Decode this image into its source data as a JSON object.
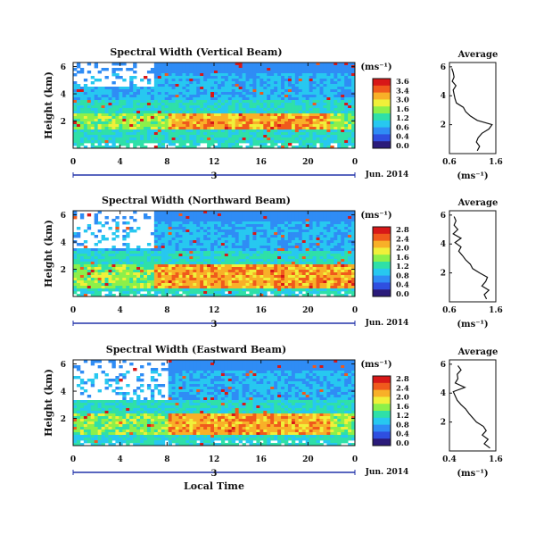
{
  "figure": {
    "xlabel": "Local Time",
    "cbar_unit": "(ms⁻¹)",
    "colormap": [
      "#2b1b7a",
      "#2f4fe0",
      "#2f8cf5",
      "#27c8f0",
      "#2fe0a8",
      "#8cf04a",
      "#f0f03a",
      "#f8b028",
      "#f05a1c",
      "#d81818"
    ]
  },
  "chart_data": [
    {
      "type": "heatmap",
      "title": "Spectral Width (Vertical Beam)",
      "ylabel": "Height (km)",
      "x_ticks": [
        "0",
        "4",
        "8",
        "12",
        "16",
        "20",
        "0"
      ],
      "y_ticks": [
        "6",
        "4",
        "2"
      ],
      "xlim": [
        0,
        24
      ],
      "ylim": [
        0,
        6.3
      ],
      "day_marker": "3",
      "date_label": "Jun. 2014",
      "colorbar": {
        "ticks": [
          "3.6",
          "3.4",
          "3.0",
          "1.6",
          "1.2",
          "0.6",
          "0.4",
          "0.0"
        ],
        "range": [
          0,
          3.6
        ]
      },
      "average": {
        "title": "Average",
        "xlabel": "(ms⁻¹)",
        "x_ticks": [
          "0.6",
          "1.6"
        ],
        "y_ticks": [
          "6",
          "4",
          "2"
        ],
        "xlim": [
          0.6,
          1.6
        ],
        "ylim": [
          0,
          6.3
        ],
        "height": [
          0.2,
          0.5,
          0.8,
          1.1,
          1.4,
          1.7,
          2.0,
          2.3,
          2.6,
          2.9,
          3.2,
          3.5,
          3.8,
          4.1,
          4.4,
          4.7,
          5.0,
          5.3,
          5.6,
          5.9
        ],
        "value": [
          1.2,
          1.25,
          1.18,
          1.22,
          1.3,
          1.45,
          1.52,
          1.2,
          1.05,
          0.95,
          0.9,
          0.75,
          0.72,
          0.7,
          0.68,
          0.74,
          0.66,
          0.7,
          0.68,
          0.65
        ]
      },
      "field": {
        "high_band": [
          1.3,
          2.6
        ],
        "high_time": [
          8,
          22
        ],
        "gap_rows": [
          4.5,
          6.3
        ],
        "gap_time": [
          0,
          7
        ]
      }
    },
    {
      "type": "heatmap",
      "title": "Spectral Width (Northward Beam)",
      "ylabel": "Height (km)",
      "x_ticks": [
        "0",
        "4",
        "8",
        "12",
        "16",
        "20",
        "0"
      ],
      "y_ticks": [
        "6",
        "4",
        "2"
      ],
      "xlim": [
        0,
        24
      ],
      "ylim": [
        0,
        6.3
      ],
      "day_marker": "3",
      "date_label": "Jun. 2014",
      "colorbar": {
        "ticks": [
          "2.8",
          "2.4",
          "2.0",
          "1.6",
          "1.2",
          "0.8",
          "0.4",
          "0.0"
        ],
        "range": [
          0,
          2.8
        ]
      },
      "average": {
        "title": "Average",
        "xlabel": "(ms⁻¹)",
        "x_ticks": [
          "0.6",
          "1.6"
        ],
        "y_ticks": [
          "6",
          "4",
          "2"
        ],
        "xlim": [
          0.6,
          1.6
        ],
        "ylim": [
          0,
          6.3
        ],
        "height": [
          0.2,
          0.5,
          0.8,
          1.1,
          1.4,
          1.7,
          2.0,
          2.3,
          2.6,
          2.9,
          3.2,
          3.5,
          3.8,
          4.1,
          4.4,
          4.7,
          5.0,
          5.3,
          5.6,
          5.9
        ],
        "value": [
          1.4,
          1.35,
          1.45,
          1.3,
          1.38,
          1.42,
          1.25,
          1.1,
          1.05,
          0.95,
          0.88,
          0.8,
          0.85,
          0.72,
          0.85,
          0.68,
          0.78,
          0.7,
          0.74,
          0.7
        ]
      },
      "field": {
        "high_band": [
          0.6,
          2.4
        ],
        "high_time": [
          7,
          24
        ],
        "gap_rows": [
          3.5,
          6.3
        ],
        "gap_time": [
          0,
          7
        ]
      }
    },
    {
      "type": "heatmap",
      "title": "Spectral Width (Eastward Beam)",
      "ylabel": "Height (km)",
      "x_ticks": [
        "0",
        "4",
        "8",
        "12",
        "16",
        "20",
        "0"
      ],
      "y_ticks": [
        "6",
        "4",
        "2"
      ],
      "xlim": [
        0,
        24
      ],
      "ylim": [
        0,
        6.3
      ],
      "day_marker": "3",
      "date_label": "Jun. 2014",
      "colorbar": {
        "ticks": [
          "2.8",
          "2.4",
          "2.0",
          "1.6",
          "1.2",
          "0.8",
          "0.4",
          "0.0"
        ],
        "range": [
          0,
          2.8
        ]
      },
      "average": {
        "title": "Average",
        "xlabel": "(ms⁻¹)",
        "x_ticks": [
          "0.4",
          "1.6"
        ],
        "y_ticks": [
          "6",
          "4",
          "2"
        ],
        "xlim": [
          0.4,
          1.6
        ],
        "ylim": [
          0,
          6.3
        ],
        "height": [
          0.2,
          0.5,
          0.8,
          1.1,
          1.4,
          1.7,
          2.0,
          2.3,
          2.6,
          2.9,
          3.2,
          3.5,
          3.8,
          4.1,
          4.4,
          4.7,
          5.0,
          5.3,
          5.6,
          5.9
        ],
        "value": [
          1.45,
          1.3,
          1.4,
          1.25,
          1.35,
          1.28,
          1.1,
          1.0,
          0.9,
          0.82,
          0.7,
          0.6,
          0.55,
          0.5,
          0.8,
          0.55,
          0.62,
          0.6,
          0.7,
          0.62
        ]
      },
      "field": {
        "high_band": [
          0.8,
          2.4
        ],
        "high_time": [
          8,
          22
        ],
        "gap_rows": [
          3.4,
          6.3
        ],
        "gap_time": [
          0,
          8
        ]
      }
    }
  ]
}
